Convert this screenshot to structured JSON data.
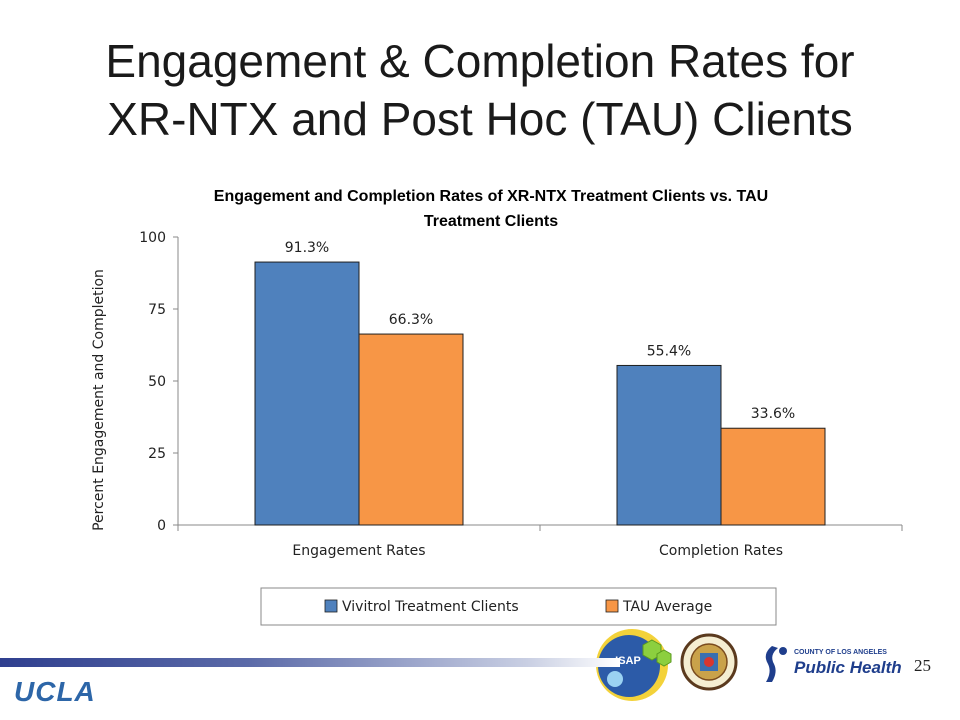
{
  "slide": {
    "title_line1": "Engagement & Completion Rates for",
    "title_line2": "XR-NTX and Post Hoc (TAU) Clients",
    "page_number": "25",
    "footer_logo": "UCLA",
    "isap_logo_text": "ISAP",
    "public_health_small": "COUNTY OF LOS ANGELES",
    "public_health_large": "Public Health"
  },
  "chart_data": {
    "type": "bar",
    "title_line1": "Engagement and Completion Rates of XR-NTX Treatment Clients vs. TAU",
    "title_line2": "Treatment Clients",
    "ylabel": "Percent Engagement and Completion",
    "xlabel": "",
    "ylim": [
      0,
      100
    ],
    "yticks": [
      "0",
      "25",
      "50",
      "75",
      "100"
    ],
    "categories": [
      "Engagement Rates",
      "Completion Rates"
    ],
    "series": [
      {
        "name": "Vivitrol Treatment Clients",
        "values": [
          91.3,
          55.4
        ],
        "labels": [
          "91.3%",
          "55.4%"
        ],
        "color": "#4f81bd"
      },
      {
        "name": "TAU Average",
        "values": [
          66.3,
          33.6
        ],
        "labels": [
          "66.3%",
          "33.6%"
        ],
        "color": "#f79646"
      }
    ],
    "grid": false,
    "legend_position": "bottom"
  }
}
